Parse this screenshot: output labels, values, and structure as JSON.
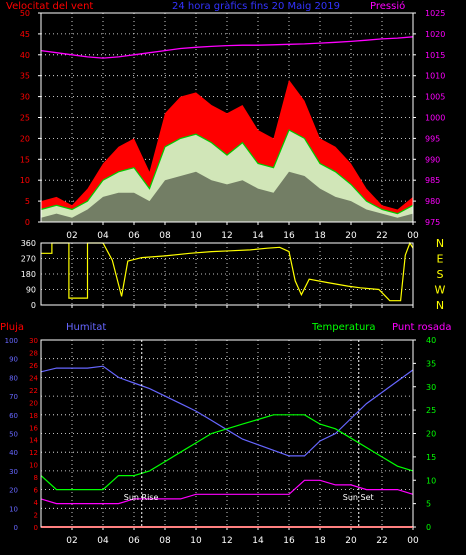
{
  "colors": {
    "wind": "#ff0000",
    "gust_fill": "#ff0000",
    "avg": "#00cc00",
    "light": "#ccffcc",
    "pressure": "#ff00ff",
    "direction": "#ffff00",
    "rain": "#ff0000",
    "humidity": "#6666ff",
    "temperature": "#00ff00",
    "dewpoint": "#ff00ff",
    "grid": "#ffffff",
    "axis": "#ffffff",
    "tick_left": "#ff0000"
  },
  "chart_data": [
    {
      "type": "area",
      "labels": {
        "left": "Velocitat del vent",
        "title": "24 hora gràfics fins 20 Maig 2019",
        "right": "Pressió"
      },
      "xticks": [
        "02",
        "04",
        "06",
        "08",
        "10",
        "12",
        "14",
        "16",
        "18",
        "20",
        "22",
        "00"
      ],
      "x_hours": [
        0,
        1,
        2,
        3,
        4,
        5,
        6,
        7,
        8,
        9,
        10,
        11,
        12,
        13,
        14,
        15,
        16,
        17,
        18,
        19,
        20,
        21,
        22,
        23,
        24
      ],
      "ylim_left": [
        0,
        50
      ],
      "yticks_left": [
        "0",
        "5",
        "10",
        "15",
        "20",
        "25",
        "30",
        "35",
        "40",
        "45",
        "50"
      ],
      "ylim_right": [
        975,
        1025
      ],
      "yticks_right": [
        "975",
        "980",
        "985",
        "990",
        "995",
        "1000",
        "1005",
        "1010",
        "1015",
        "1020",
        "1025"
      ],
      "wind_gust": [
        5,
        6,
        4,
        8,
        14,
        18,
        20,
        12,
        26,
        30,
        31,
        28,
        26,
        28,
        22,
        20,
        34,
        29,
        20,
        18,
        14,
        8,
        4,
        3,
        6
      ],
      "wind_avg": [
        3,
        4,
        3,
        5,
        10,
        12,
        13,
        8,
        18,
        20,
        21,
        19,
        16,
        19,
        14,
        13,
        22,
        20,
        14,
        12,
        9,
        5,
        3,
        2,
        4
      ],
      "wind_low": [
        1,
        2,
        1,
        3,
        6,
        7,
        7,
        5,
        10,
        11,
        12,
        10,
        9,
        10,
        8,
        7,
        12,
        11,
        8,
        6,
        5,
        3,
        2,
        1,
        2
      ],
      "pressure": [
        1016,
        1015.5,
        1015,
        1014.5,
        1014.2,
        1014.5,
        1015,
        1015.5,
        1016,
        1016.5,
        1016.8,
        1017,
        1017.2,
        1017.3,
        1017.3,
        1017.4,
        1017.5,
        1017.6,
        1017.8,
        1018,
        1018.2,
        1018.5,
        1018.8,
        1019,
        1019.3
      ]
    },
    {
      "type": "line",
      "yticks_left": [
        "0",
        "90",
        "180",
        "270",
        "360"
      ],
      "ylim": [
        0,
        360
      ],
      "yticks_right": [
        "N",
        "W",
        "S",
        "E",
        "N"
      ],
      "xticks": [
        "02",
        "04",
        "06",
        "08",
        "10",
        "12",
        "14",
        "16",
        "18",
        "20",
        "22",
        "00"
      ],
      "direction": [
        [
          0,
          300
        ],
        [
          0.7,
          300
        ],
        [
          0.7,
          360
        ],
        [
          1.8,
          360
        ],
        [
          1.8,
          40
        ],
        [
          3.0,
          40
        ],
        [
          3.0,
          360
        ],
        [
          4.0,
          360
        ],
        [
          4.6,
          260
        ],
        [
          5.2,
          50
        ],
        [
          5.6,
          255
        ],
        [
          6.5,
          275
        ],
        [
          8,
          285
        ],
        [
          9.6,
          300
        ],
        [
          11,
          310
        ],
        [
          12.2,
          315
        ],
        [
          13.5,
          320
        ],
        [
          14.6,
          330
        ],
        [
          15.4,
          335
        ],
        [
          16,
          310
        ],
        [
          16.4,
          140
        ],
        [
          16.8,
          60
        ],
        [
          17.3,
          150
        ],
        [
          18.5,
          130
        ],
        [
          19.8,
          110
        ],
        [
          20.6,
          100
        ],
        [
          21.8,
          90
        ],
        [
          22.5,
          25
        ],
        [
          23.2,
          25
        ],
        [
          23.5,
          290
        ],
        [
          23.8,
          360
        ],
        [
          24,
          330
        ]
      ]
    },
    {
      "type": "line",
      "labels": {
        "rain": "Pluja",
        "humidity": "Humitat",
        "temperature": "Temperatura",
        "dewpoint": "Punt rosada",
        "sunrise": "Sun Rise",
        "sunset": "Sun Set"
      },
      "xticks": [
        "02",
        "04",
        "06",
        "08",
        "10",
        "12",
        "14",
        "16",
        "18",
        "20",
        "22",
        "00"
      ],
      "ylim_rain": [
        0,
        30
      ],
      "yticks_rain": [
        "0",
        "2",
        "4",
        "6",
        "8",
        "10",
        "12",
        "14",
        "16",
        "18",
        "20",
        "22",
        "24",
        "26",
        "28",
        "30"
      ],
      "ylim_humidity": [
        0,
        100
      ],
      "yticks_humidity": [
        "0",
        "10",
        "20",
        "30",
        "40",
        "50",
        "60",
        "70",
        "80",
        "90",
        "100"
      ],
      "ylim_temp": [
        0,
        40
      ],
      "yticks_temp": [
        "0",
        "5",
        "10",
        "15",
        "20",
        "25",
        "30",
        "35",
        "40"
      ],
      "x_hours": [
        0,
        1,
        2,
        3,
        4,
        5,
        6,
        7,
        8,
        9,
        10,
        11,
        12,
        13,
        14,
        15,
        16,
        17,
        18,
        19,
        20,
        21,
        22,
        23,
        24
      ],
      "temperature": [
        11,
        8,
        8,
        8,
        8,
        11,
        11,
        12,
        14,
        16,
        18,
        20,
        21,
        22,
        23,
        24,
        24,
        24,
        22,
        21,
        19,
        17,
        15,
        13,
        12
      ],
      "humidity": [
        83,
        85,
        85,
        85,
        86,
        80,
        77,
        74,
        70,
        66,
        62,
        57,
        52,
        47,
        44,
        41,
        38,
        38,
        46,
        50,
        58,
        66,
        72,
        78,
        84
      ],
      "dewpoint": [
        6,
        5,
        5,
        5,
        5,
        5,
        6,
        6,
        6,
        6,
        7,
        7,
        7,
        7,
        7,
        7,
        7,
        10,
        10,
        9,
        9,
        8,
        8,
        8,
        7
      ],
      "rain": [
        0,
        0,
        0,
        0,
        0,
        0,
        0,
        0,
        0,
        0,
        0,
        0,
        0,
        0,
        0,
        0,
        0,
        0,
        0,
        0,
        0,
        0,
        0,
        0,
        0
      ],
      "sunrise_hour": 6.5,
      "sunset_hour": 20.5
    }
  ]
}
